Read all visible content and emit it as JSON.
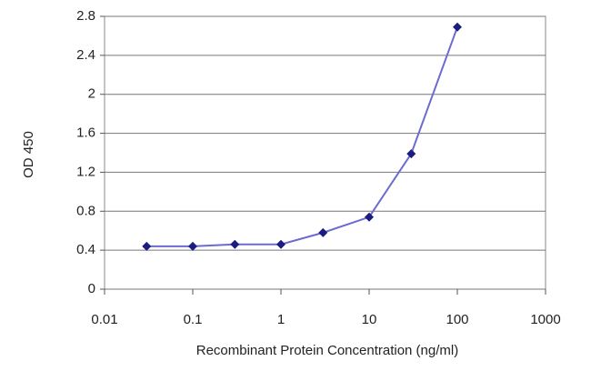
{
  "chart_data": {
    "type": "line",
    "xlabel": "Recombinant Protein Concentration (ng/ml)",
    "ylabel": "OD 450",
    "x": [
      0.03,
      0.1,
      0.3,
      1,
      3,
      10,
      30,
      100
    ],
    "values": [
      0.44,
      0.44,
      0.46,
      0.46,
      0.58,
      0.74,
      1.39,
      2.69
    ],
    "color": "#6b6bd0",
    "marker_color": "#1c1c80",
    "xscale": "log",
    "xlim": [
      0.01,
      1000
    ],
    "xticks": [
      0.01,
      0.1,
      1,
      10,
      100,
      1000
    ],
    "ylim": [
      0,
      2.8
    ],
    "yticks": [
      0,
      0.4,
      0.8,
      1.2,
      1.6,
      2,
      2.4,
      2.8
    ],
    "grid": true
  }
}
